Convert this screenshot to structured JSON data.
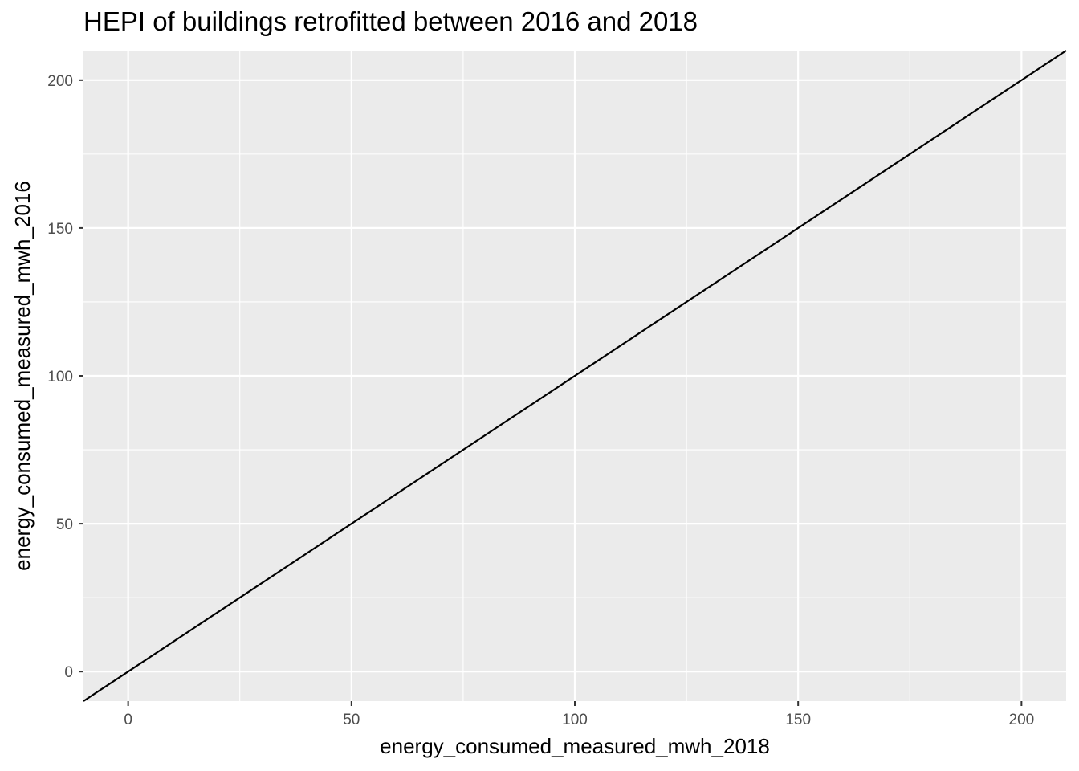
{
  "chart_data": {
    "type": "line",
    "title": "HEPI of buildings retrofitted between 2016 and 2018",
    "xlabel": "energy_consumed_measured_mwh_2018",
    "ylabel": "energy_consumed_measured_mwh_2016",
    "xlim": [
      -10,
      210
    ],
    "ylim": [
      -10,
      210
    ],
    "x_ticks": [
      0,
      50,
      100,
      150,
      200
    ],
    "y_ticks": [
      0,
      50,
      100,
      150,
      200
    ],
    "x_tick_labels": [
      "0",
      "50",
      "100",
      "150",
      "200"
    ],
    "y_tick_labels": [
      "0",
      "50",
      "100",
      "150",
      "200"
    ],
    "grid": true,
    "series": [
      {
        "x": [
          -10,
          210
        ],
        "y": [
          -10,
          210
        ]
      }
    ],
    "colors": {
      "panel": "#EBEBEB",
      "grid": "#FFFFFF",
      "line": "#000000",
      "tick_text": "#4D4D4D"
    }
  }
}
